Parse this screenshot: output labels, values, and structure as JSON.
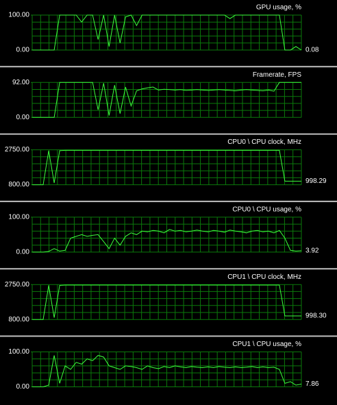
{
  "chart_data": [
    {
      "type": "line",
      "title": "GPU usage, %",
      "ylim": [
        0,
        100
      ],
      "yticks": [
        {
          "value": 100,
          "label": "100.00"
        },
        {
          "value": 0,
          "label": "0.00"
        }
      ],
      "grid": true,
      "color": "#3cff3c",
      "values": [
        0,
        0,
        0,
        0,
        0,
        100,
        100,
        100,
        100,
        80,
        100,
        100,
        30,
        100,
        10,
        100,
        20,
        95,
        100,
        70,
        100,
        100,
        100,
        100,
        100,
        100,
        100,
        100,
        100,
        100,
        100,
        100,
        100,
        100,
        100,
        100,
        90,
        100,
        100,
        100,
        100,
        100,
        100,
        100,
        100,
        100,
        0,
        0,
        10,
        0.08
      ],
      "current": 0.08
    },
    {
      "type": "line",
      "title": "Framerate, FPS",
      "ylim": [
        0,
        92
      ],
      "yticks": [
        {
          "value": 92,
          "label": "92.00"
        },
        {
          "value": 0,
          "label": "0.00"
        }
      ],
      "grid": true,
      "color": "#3cff3c",
      "values": [
        0,
        0,
        0,
        0,
        0,
        92,
        92,
        92,
        92,
        92,
        92,
        92,
        20,
        90,
        5,
        85,
        10,
        80,
        30,
        70,
        75,
        78,
        80,
        72,
        74,
        73,
        72,
        73,
        71,
        72,
        73,
        72,
        71,
        72,
        73,
        72,
        71,
        70,
        72,
        73,
        72,
        71,
        70,
        72,
        69,
        92,
        92,
        92,
        92,
        92
      ]
    },
    {
      "type": "line",
      "title": "CPU0 \\ CPU clock, MHz",
      "ylim": [
        800,
        2750
      ],
      "yticks": [
        {
          "value": 2750,
          "label": "2750.00"
        },
        {
          "value": 800,
          "label": "800.00"
        }
      ],
      "grid": true,
      "color": "#3cff3c",
      "values": [
        800,
        800,
        800,
        2700,
        900,
        2700,
        2720,
        2720,
        2720,
        2720,
        2720,
        2720,
        2720,
        2720,
        2720,
        2720,
        2720,
        2720,
        2720,
        2720,
        2720,
        2720,
        2720,
        2720,
        2720,
        2720,
        2720,
        2720,
        2720,
        2720,
        2720,
        2720,
        2720,
        2720,
        2720,
        2720,
        2720,
        2720,
        2720,
        2720,
        2720,
        2720,
        2720,
        2720,
        2720,
        2720,
        998.29,
        998.29,
        998.29,
        998.29
      ],
      "current": 998.29
    },
    {
      "type": "line",
      "title": "CPU0 \\ CPU usage, %",
      "ylim": [
        0,
        100
      ],
      "yticks": [
        {
          "value": 100,
          "label": "100.00"
        },
        {
          "value": 0,
          "label": "0.00"
        }
      ],
      "grid": true,
      "color": "#3cff3c",
      "values": [
        0,
        0,
        0,
        2,
        10,
        3,
        5,
        40,
        45,
        50,
        45,
        48,
        50,
        30,
        10,
        40,
        20,
        45,
        55,
        50,
        60,
        58,
        62,
        60,
        55,
        65,
        60,
        62,
        58,
        60,
        63,
        60,
        58,
        62,
        60,
        57,
        63,
        60,
        58,
        55,
        60,
        62,
        58,
        60,
        55,
        62,
        40,
        5,
        3,
        3.92
      ],
      "current": 3.92
    },
    {
      "type": "line",
      "title": "CPU1 \\ CPU clock, MHz",
      "ylim": [
        800,
        2750
      ],
      "yticks": [
        {
          "value": 2750,
          "label": "2750.00"
        },
        {
          "value": 800,
          "label": "800.00"
        }
      ],
      "grid": true,
      "color": "#3cff3c",
      "values": [
        800,
        800,
        800,
        2700,
        900,
        2700,
        2720,
        2720,
        2720,
        2720,
        2720,
        2720,
        2720,
        2720,
        2720,
        2720,
        2720,
        2720,
        2720,
        2720,
        2720,
        2720,
        2720,
        2720,
        2720,
        2720,
        2720,
        2720,
        2720,
        2720,
        2720,
        2720,
        2720,
        2720,
        2720,
        2720,
        2720,
        2720,
        2720,
        2720,
        2720,
        2720,
        2720,
        2720,
        2720,
        2720,
        998.3,
        998.3,
        998.3,
        998.3
      ],
      "current": {
        "value": 998.3,
        "label": "998.30"
      }
    },
    {
      "type": "line",
      "title": "CPU1 \\ CPU usage, %",
      "ylim": [
        0,
        100
      ],
      "yticks": [
        {
          "value": 100,
          "label": "100.00"
        },
        {
          "value": 0,
          "label": "0.00"
        }
      ],
      "grid": true,
      "color": "#3cff3c",
      "values": [
        0,
        0,
        0,
        5,
        90,
        10,
        60,
        50,
        70,
        65,
        80,
        75,
        90,
        85,
        60,
        55,
        50,
        60,
        58,
        55,
        50,
        60,
        55,
        52,
        58,
        55,
        60,
        57,
        55,
        58,
        56,
        55,
        57,
        55,
        58,
        56,
        55,
        57,
        55,
        56,
        58,
        55,
        57,
        55,
        56,
        50,
        10,
        15,
        5,
        7.86
      ],
      "current": 7.86
    }
  ]
}
